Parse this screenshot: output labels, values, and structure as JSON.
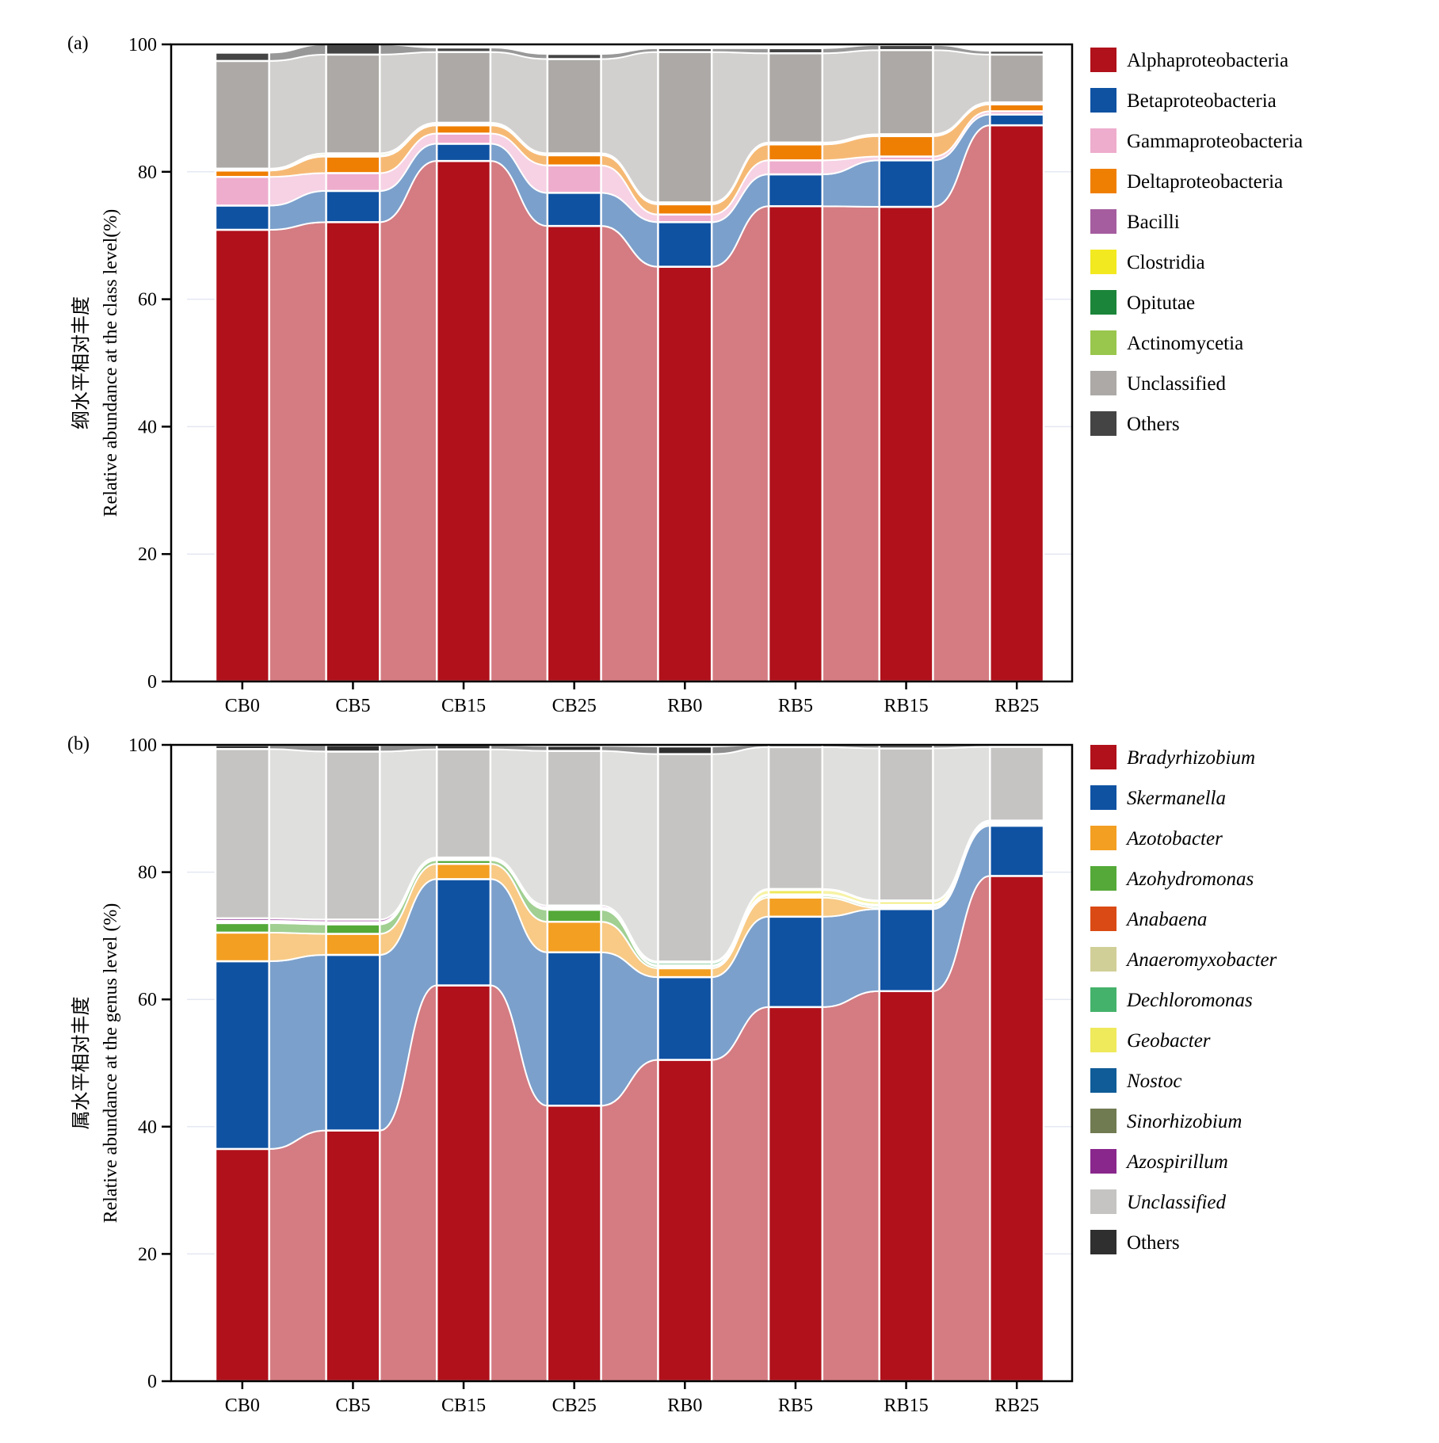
{
  "chart_data": [
    {
      "type": "bar",
      "subtype": "stacked-alluvial",
      "panel_label": "(a)",
      "title": "",
      "xlabel": "",
      "ylabel_cn": "纲水平相对丰度",
      "ylabel": "Relative abundance at the class level(%)",
      "ylim": [
        0,
        100
      ],
      "yticks": [
        "0",
        "20",
        "40",
        "60",
        "80",
        "100"
      ],
      "grid": true,
      "legend_position": "right",
      "categories": [
        "CB0",
        "CB5",
        "CB15",
        "CB25",
        "RB0",
        "RB5",
        "RB15",
        "RB25"
      ],
      "series": [
        {
          "name": "Alphaproteobacteria",
          "italic": false,
          "color": "#B0111B",
          "values": [
            70.9,
            72.1,
            81.7,
            71.5,
            65.1,
            74.6,
            74.5,
            87.3
          ]
        },
        {
          "name": "Betaproteobacteria",
          "italic": false,
          "color": "#0F52A2",
          "values": [
            3.8,
            4.9,
            2.7,
            5.2,
            7.0,
            5.0,
            7.3,
            1.7
          ]
        },
        {
          "name": "Gammaproteobacteria",
          "italic": false,
          "color": "#EEADCD",
          "values": [
            4.5,
            2.8,
            1.6,
            4.3,
            1.2,
            2.2,
            0.6,
            0.5
          ]
        },
        {
          "name": "Deltaproteobacteria",
          "italic": false,
          "color": "#EF7F02",
          "values": [
            1.0,
            2.6,
            1.3,
            1.6,
            1.6,
            2.5,
            3.2,
            1.1
          ]
        },
        {
          "name": "Bacilli",
          "italic": false,
          "color": "#A55D9F",
          "values": [
            0.1,
            0.1,
            0.1,
            0.1,
            0.1,
            0.1,
            0.1,
            0.1
          ]
        },
        {
          "name": "Clostridia",
          "italic": false,
          "color": "#F2E921",
          "values": [
            0.05,
            0.05,
            0.05,
            0.05,
            0.05,
            0.05,
            0.05,
            0.05
          ]
        },
        {
          "name": "Opitutae",
          "italic": false,
          "color": "#1B8539",
          "values": [
            0.05,
            0.05,
            0.05,
            0.05,
            0.05,
            0.05,
            0.05,
            0.05
          ]
        },
        {
          "name": "Actinomycetia",
          "italic": false,
          "color": "#99C64D",
          "values": [
            0.1,
            0.3,
            0.2,
            0.1,
            0.1,
            0.1,
            0.1,
            0.1
          ]
        },
        {
          "name": "Unclassified",
          "italic": false,
          "color": "#ACA9A6",
          "values": [
            16.9,
            15.5,
            11.1,
            14.8,
            23.6,
            14.0,
            13.2,
            7.5
          ]
        },
        {
          "name": "Others",
          "italic": false,
          "color": "#444444",
          "values": [
            1.3,
            1.6,
            0.7,
            0.8,
            0.6,
            0.8,
            0.8,
            0.6
          ]
        }
      ]
    },
    {
      "type": "bar",
      "subtype": "stacked-alluvial",
      "panel_label": "(b)",
      "title": "",
      "xlabel": "",
      "ylabel_cn": "属水平相对丰度",
      "ylabel": "Relative abundance at the genus level (%)",
      "ylim": [
        0,
        100
      ],
      "yticks": [
        "0",
        "20",
        "40",
        "60",
        "80",
        "100"
      ],
      "grid": true,
      "legend_position": "right",
      "categories": [
        "CB0",
        "CB5",
        "CB15",
        "CB25",
        "RB0",
        "RB5",
        "RB15",
        "RB25"
      ],
      "series": [
        {
          "name": "Bradyrhizobium",
          "italic": true,
          "color": "#B0111B",
          "values": [
            36.5,
            39.4,
            62.2,
            43.3,
            50.5,
            58.8,
            61.3,
            79.4
          ]
        },
        {
          "name": "Skermanella",
          "italic": true,
          "color": "#0F52A2",
          "values": [
            29.5,
            27.6,
            16.7,
            24.1,
            13.0,
            14.2,
            12.9,
            7.9
          ]
        },
        {
          "name": "Azotobacter",
          "italic": true,
          "color": "#F39F22",
          "values": [
            4.5,
            3.3,
            2.4,
            4.8,
            1.4,
            3.0,
            0.2,
            0.3
          ]
        },
        {
          "name": "Azohydromonas",
          "italic": true,
          "color": "#54A938",
          "values": [
            1.5,
            1.5,
            0.6,
            1.9,
            0.3,
            0.3,
            0.3,
            0.1
          ]
        },
        {
          "name": "Anabaena",
          "italic": true,
          "color": "#DA4A15",
          "values": [
            0.05,
            0.05,
            0.05,
            0.05,
            0.05,
            0.05,
            0.05,
            0.05
          ]
        },
        {
          "name": "Anaeromyxobacter",
          "italic": true,
          "color": "#D1CF98",
          "values": [
            0.1,
            0.1,
            0.1,
            0.1,
            0.1,
            0.1,
            0.1,
            0.1
          ]
        },
        {
          "name": "Dechloromonas",
          "italic": true,
          "color": "#45B26B",
          "values": [
            0.05,
            0.05,
            0.05,
            0.05,
            0.4,
            0.05,
            0.05,
            0.05
          ]
        },
        {
          "name": "Geobacter",
          "italic": true,
          "color": "#EFE95C",
          "values": [
            0.05,
            0.05,
            0.05,
            0.05,
            0.05,
            0.7,
            0.5,
            0.05
          ]
        },
        {
          "name": "Nostoc",
          "italic": true,
          "color": "#105C98",
          "values": [
            0.05,
            0.05,
            0.05,
            0.05,
            0.05,
            0.05,
            0.05,
            0.05
          ]
        },
        {
          "name": "Sinorhizobium",
          "italic": true,
          "color": "#707B52",
          "values": [
            0.05,
            0.05,
            0.05,
            0.05,
            0.05,
            0.05,
            0.05,
            0.05
          ]
        },
        {
          "name": "Azospirillum",
          "italic": true,
          "color": "#8A278D",
          "values": [
            0.4,
            0.4,
            0.05,
            0.3,
            0.05,
            0.05,
            0.05,
            0.05
          ]
        },
        {
          "name": "Unclassified",
          "italic": true,
          "color": "#C5C4C2",
          "values": [
            26.6,
            26.4,
            17.0,
            24.3,
            32.6,
            22.3,
            23.9,
            11.6
          ]
        },
        {
          "name": "Others",
          "italic": false,
          "color": "#2F2F2F",
          "values": [
            0.6,
            1.0,
            0.7,
            0.8,
            1.2,
            0.4,
            0.5,
            0.3
          ]
        }
      ]
    }
  ]
}
